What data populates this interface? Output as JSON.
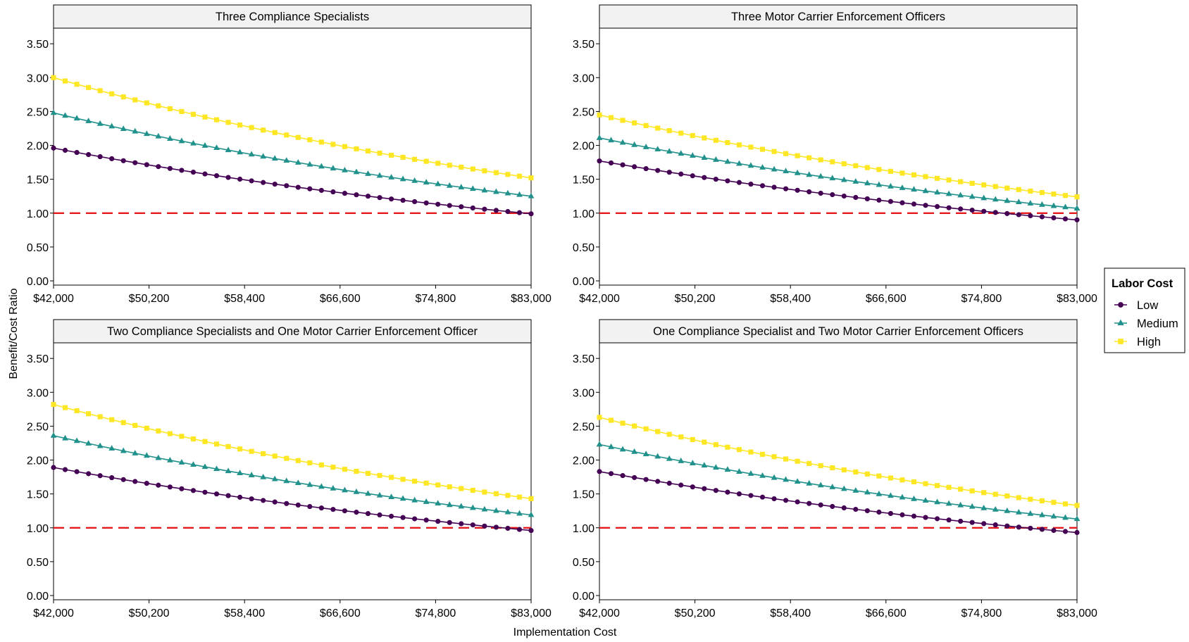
{
  "chart_data": {
    "type": "line",
    "xlabel": "Implementation Cost",
    "ylabel": "Benefit/Cost Ratio",
    "x_ticks": [
      "$42,000",
      "$50,200",
      "$58,400",
      "$66,600",
      "$74,800",
      "$83,000"
    ],
    "y_ticks": [
      "0.00",
      "0.50",
      "1.00",
      "1.50",
      "2.00",
      "2.50",
      "3.00",
      "3.50"
    ],
    "xlim": [
      42000,
      83000
    ],
    "ylim": [
      0,
      3.5
    ],
    "reference_line": {
      "y": 1.0,
      "color": "#e41a1c",
      "style": "dashed"
    },
    "grid": false,
    "legend": {
      "title": "Labor Cost",
      "placement": "right",
      "entries": [
        {
          "name": "Low",
          "color": "#440154",
          "marker": "circle"
        },
        {
          "name": "Medium",
          "color": "#21918c",
          "marker": "triangle"
        },
        {
          "name": "High",
          "color": "#fde725",
          "marker": "square"
        }
      ]
    },
    "x_points_step": 1000,
    "panels": [
      {
        "title": "Three Compliance Specialists",
        "series": [
          {
            "name": "Low",
            "values_at_42000_and_83000": [
              1.96,
              0.99
            ]
          },
          {
            "name": "Medium",
            "values_at_42000_and_83000": [
              2.48,
              1.25
            ]
          },
          {
            "name": "High",
            "values_at_42000_and_83000": [
              3.0,
              1.52
            ]
          }
        ]
      },
      {
        "title": "Three Motor Carrier Enforcement Officers",
        "series": [
          {
            "name": "Low",
            "values_at_42000_and_83000": [
              1.77,
              0.9
            ]
          },
          {
            "name": "Medium",
            "values_at_42000_and_83000": [
              2.11,
              1.07
            ]
          },
          {
            "name": "High",
            "values_at_42000_and_83000": [
              2.45,
              1.24
            ]
          }
        ]
      },
      {
        "title": "Two Compliance Specialists and One Motor Carrier Enforcement Officer",
        "series": [
          {
            "name": "Low",
            "values_at_42000_and_83000": [
              1.89,
              0.96
            ]
          },
          {
            "name": "Medium",
            "values_at_42000_and_83000": [
              2.36,
              1.19
            ]
          },
          {
            "name": "High",
            "values_at_42000_and_83000": [
              2.82,
              1.43
            ]
          }
        ]
      },
      {
        "title": "One Compliance Specialist and Two Motor Carrier Enforcement Officers",
        "series": [
          {
            "name": "Low",
            "values_at_42000_and_83000": [
              1.83,
              0.93
            ]
          },
          {
            "name": "Medium",
            "values_at_42000_and_83000": [
              2.23,
              1.13
            ]
          },
          {
            "name": "High",
            "values_at_42000_and_83000": [
              2.63,
              1.33
            ]
          }
        ]
      }
    ]
  }
}
